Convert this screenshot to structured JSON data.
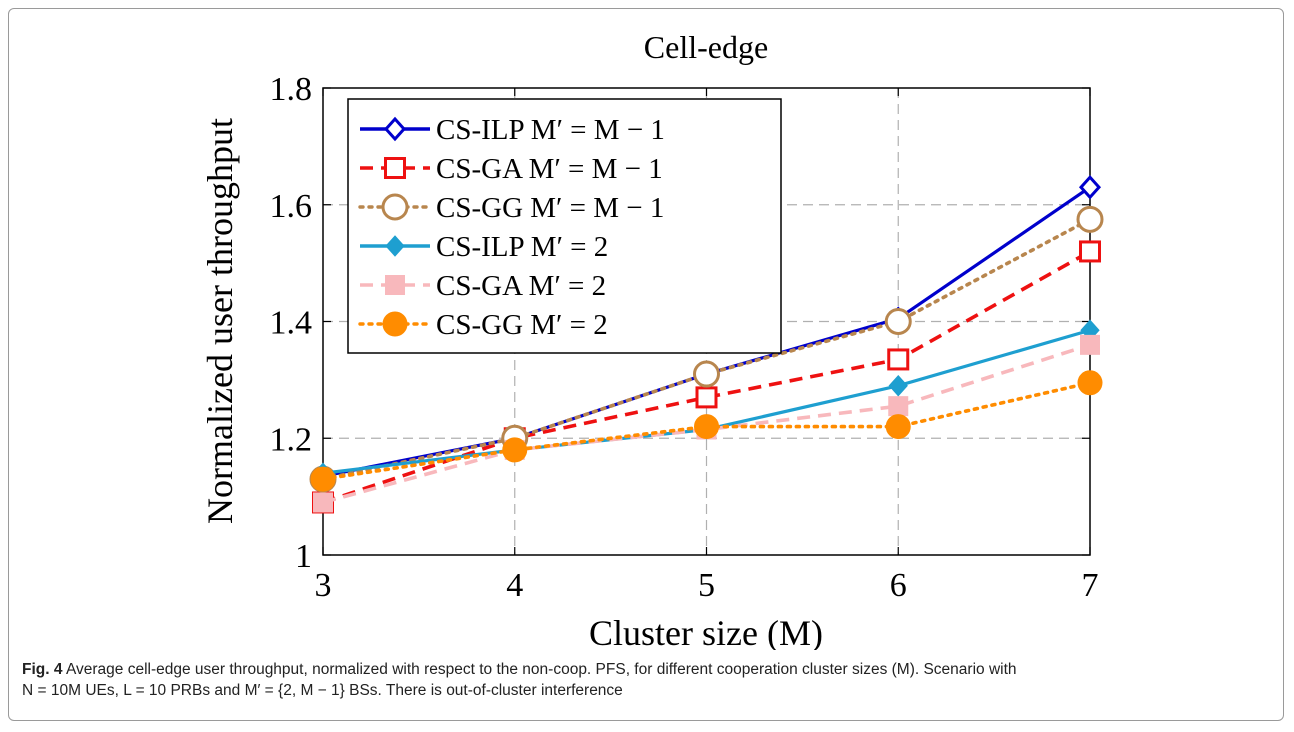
{
  "chart_data": {
    "type": "line",
    "title": "Cell-edge",
    "xlabel": "Cluster size (M)",
    "ylabel": "Normalized user throughput",
    "x": [
      3,
      4,
      5,
      6,
      7
    ],
    "xlim": [
      3,
      7
    ],
    "ylim": [
      1,
      1.8
    ],
    "xticks": [
      "3",
      "4",
      "5",
      "6",
      "7"
    ],
    "yticks": [
      "1",
      "1.2",
      "1.4",
      "1.6",
      "1.8"
    ],
    "yticks_values": [
      1,
      1.2,
      1.4,
      1.6,
      1.8
    ],
    "grid": true,
    "legend_position": "top-left",
    "series": [
      {
        "name": "CS-ILP M′ = M − 1",
        "values": [
          1.135,
          1.2,
          1.31,
          1.405,
          1.63
        ],
        "color": "#0000cc",
        "dash": "solid",
        "marker": "diamond-open"
      },
      {
        "name": "CS-GA M′ = M − 1",
        "values": [
          1.09,
          1.2,
          1.27,
          1.335,
          1.52
        ],
        "color": "#ee1111",
        "dash": "dashed",
        "marker": "square-open"
      },
      {
        "name": "CS-GG M′ = M − 1",
        "values": [
          1.13,
          1.2,
          1.31,
          1.4,
          1.575
        ],
        "color": "#b8864e",
        "dash": "dotted",
        "marker": "circle-open"
      },
      {
        "name": "CS-ILP M′ = 2",
        "values": [
          1.14,
          1.18,
          1.215,
          1.29,
          1.385
        ],
        "color": "#1e9fd0",
        "dash": "solid",
        "marker": "diamond-filled"
      },
      {
        "name": "CS-GA M′ = 2",
        "values": [
          1.09,
          1.18,
          1.215,
          1.255,
          1.36
        ],
        "color": "#f8b8bc",
        "dash": "dashed",
        "marker": "square-filled"
      },
      {
        "name": "CS-GG M′ = 2",
        "values": [
          1.13,
          1.18,
          1.22,
          1.22,
          1.295
        ],
        "color": "#ff8c00",
        "dash": "dotted",
        "marker": "circle-filled"
      }
    ]
  },
  "caption": {
    "label": "Fig. 4",
    "line1": "Average cell-edge user throughput, normalized with respect to the non-coop. PFS, for different cooperation cluster sizes (M). Scenario with",
    "line2": "N = 10M UEs, L = 10 PRBs and M′ = {2, M − 1} BSs. There is out-of-cluster interference"
  }
}
